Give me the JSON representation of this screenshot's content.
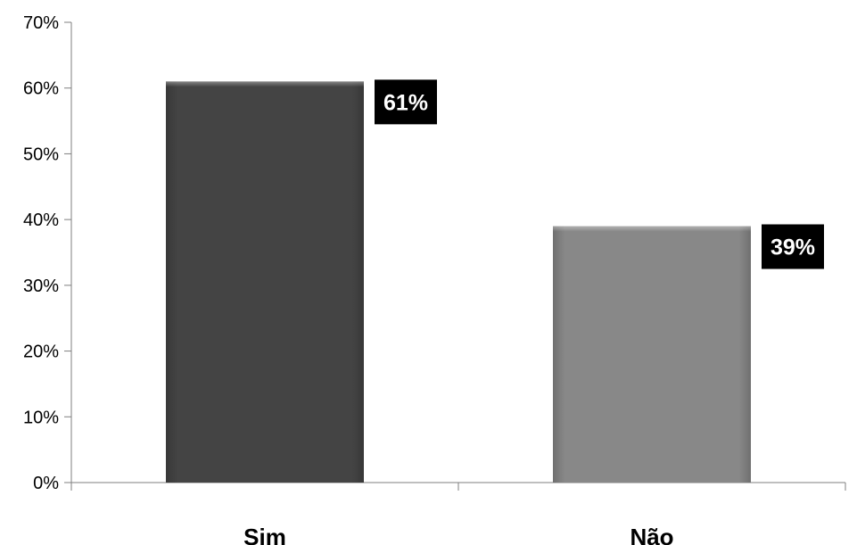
{
  "chart_data": {
    "type": "bar",
    "categories": [
      "Sim",
      "Não"
    ],
    "values": [
      61,
      39
    ],
    "data_labels": [
      "61%",
      "39%"
    ],
    "bar_colors": [
      "#444444",
      "#888888"
    ],
    "label_box_color": "#000000",
    "ylim": [
      0,
      70
    ],
    "y_ticks": [
      0,
      10,
      20,
      30,
      40,
      50,
      60,
      70
    ],
    "y_tick_labels": [
      "0%",
      "10%",
      "20%",
      "30%",
      "40%",
      "50%",
      "60%",
      "70%"
    ],
    "grid": false,
    "legend": "none",
    "title": "",
    "xlabel": "",
    "ylabel": ""
  }
}
